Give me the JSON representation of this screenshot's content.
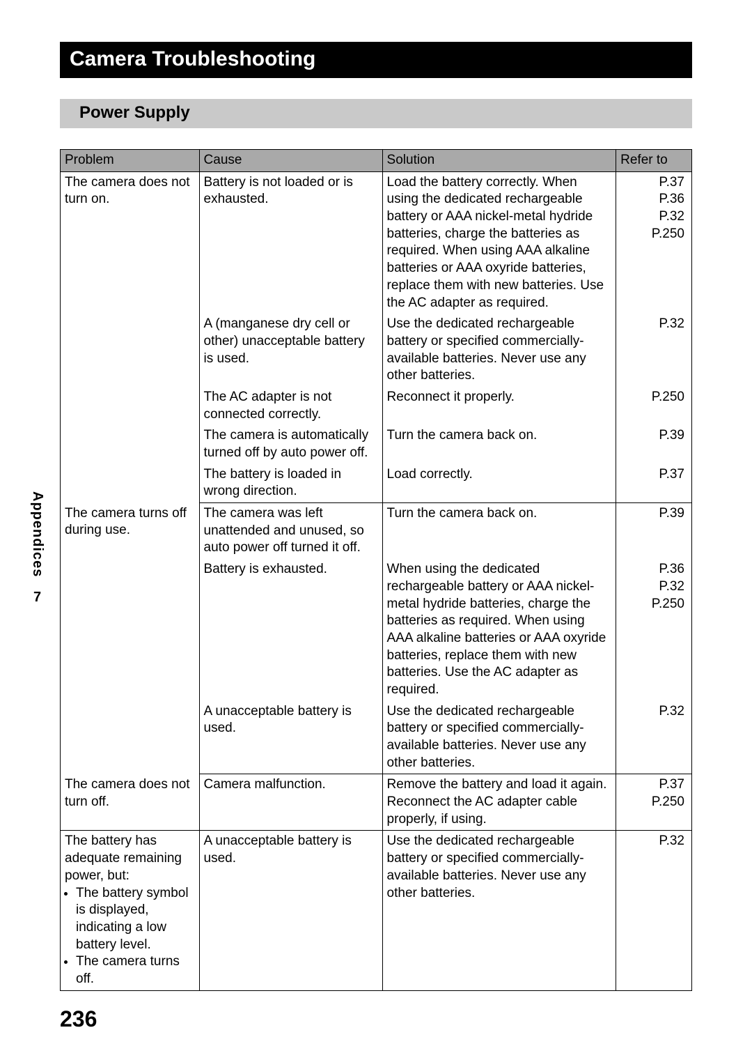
{
  "title": "Camera Troubleshooting",
  "section": "Power Supply",
  "side_tab": {
    "label": "Appendices",
    "num": "7"
  },
  "page_number": "236",
  "table": {
    "headers": {
      "problem": "Problem",
      "cause": "Cause",
      "solution": "Solution",
      "refer": "Refer to"
    },
    "rows": [
      {
        "problem": "The camera does not turn on.",
        "cause": "Battery is not loaded or is exhausted.",
        "solution": "Load the battery correctly. When using the dedicated rechargeable battery or AAA nickel-metal hydride batteries, charge the batteries as required. When using AAA alkaline batteries or AAA oxyride batteries, replace them with new batteries. Use the AC adapter as required.",
        "refer": "P.37\nP.36\nP.32\nP.250",
        "p_span": 5
      },
      {
        "cause": "A (manganese dry cell or other) unacceptable battery is used.",
        "solution": "Use the dedicated rechargeable battery or specified commercially-available batteries. Never use any other batteries.",
        "refer": "P.32"
      },
      {
        "cause": "The AC adapter is not connected correctly.",
        "solution": "Reconnect it properly.",
        "refer": "P.250"
      },
      {
        "cause": "The camera is automatically turned off by auto power off.",
        "solution": "Turn the camera back on.",
        "refer": "P.39"
      },
      {
        "cause": "The battery is loaded in wrong direction.",
        "solution": "Load correctly.",
        "refer": "P.37",
        "sep": true
      },
      {
        "problem": "The camera turns off during use.",
        "cause": "The camera was left unattended and unused, so auto power off turned it off.",
        "solution": "Turn the camera back on.",
        "refer": "P.39",
        "p_span": 3
      },
      {
        "cause": "Battery is exhausted.",
        "solution": "When using the dedicated rechargeable battery or AAA nickel-metal hydride batteries, charge the batteries as required. When using AAA alkaline batteries or AAA oxyride batteries, replace them with new batteries. Use the AC adapter as required.",
        "refer": "P.36\nP.32\nP.250"
      },
      {
        "cause": "A unacceptable battery is used.",
        "solution": "Use the dedicated rechargeable battery or specified commercially-available batteries. Never use any other batteries.",
        "refer": "P.32",
        "sep": true
      },
      {
        "problem": "The camera does not turn off.",
        "cause": "Camera malfunction.",
        "solution": "Remove the battery and load it again. Reconnect the AC adapter cable properly, if using.",
        "refer": "P.37\nP.250",
        "p_span": 1,
        "sep": true
      },
      {
        "problem_main": "The battery has adequate remaining power, but:",
        "problem_bullets": [
          "The battery symbol is displayed, indicating a low battery level.",
          "The camera turns off."
        ],
        "cause": "A unacceptable battery is used.",
        "solution": "Use the dedicated rechargeable battery or specified commercially-available batteries. Never use any other batteries.",
        "refer": "P.32",
        "p_span": 1
      }
    ]
  }
}
